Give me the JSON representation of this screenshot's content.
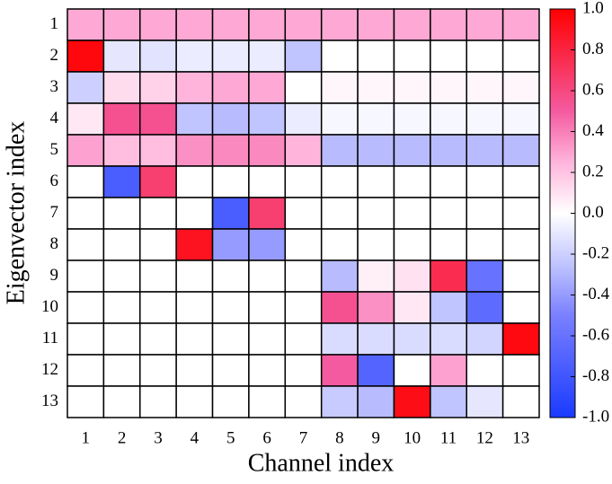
{
  "chart_data": {
    "type": "heatmap",
    "xlabel": "Channel index",
    "ylabel": "Eigenvector index",
    "x_labels": [
      1,
      2,
      3,
      4,
      5,
      6,
      7,
      8,
      9,
      10,
      11,
      12,
      13
    ],
    "y_labels": [
      1,
      2,
      3,
      4,
      5,
      6,
      7,
      8,
      9,
      10,
      11,
      12,
      13
    ],
    "z": [
      [
        0.28,
        0.28,
        0.28,
        0.28,
        0.28,
        0.28,
        0.28,
        0.28,
        0.28,
        0.28,
        0.28,
        0.28,
        0.28
      ],
      [
        0.96,
        -0.1,
        -0.12,
        -0.08,
        -0.08,
        -0.08,
        -0.25,
        0,
        0,
        0,
        0,
        0,
        0
      ],
      [
        -0.2,
        0.12,
        0.15,
        0.25,
        0.28,
        0.28,
        0,
        0.03,
        0.03,
        0.03,
        0.03,
        0.03,
        0.03
      ],
      [
        0.08,
        0.55,
        0.55,
        -0.25,
        -0.28,
        -0.25,
        -0.08,
        -0.03,
        -0.03,
        -0.03,
        -0.03,
        -0.03,
        -0.03
      ],
      [
        0.3,
        0.22,
        0.22,
        0.35,
        0.37,
        0.37,
        0.25,
        -0.28,
        -0.28,
        -0.28,
        -0.28,
        -0.28,
        -0.28
      ],
      [
        0,
        -0.75,
        0.65,
        0,
        0,
        0,
        0,
        0,
        0,
        0,
        0,
        0,
        0
      ],
      [
        0,
        0,
        0,
        0,
        -0.75,
        0.65,
        0,
        0,
        0,
        0,
        0,
        0,
        0
      ],
      [
        0,
        0,
        0,
        0.9,
        -0.4,
        -0.4,
        0,
        0,
        0,
        0,
        0,
        0,
        0
      ],
      [
        0,
        0,
        0,
        0,
        0,
        0,
        0,
        -0.28,
        0.05,
        0.1,
        0.75,
        -0.6,
        0
      ],
      [
        0,
        0,
        0,
        0,
        0,
        0,
        0,
        0.55,
        0.35,
        0.08,
        -0.25,
        -0.65,
        0
      ],
      [
        0,
        0,
        0,
        0,
        0,
        0,
        0,
        -0.15,
        -0.15,
        -0.15,
        -0.15,
        -0.18,
        0.95
      ],
      [
        0,
        0,
        0,
        0,
        0,
        0,
        0,
        0.5,
        -0.7,
        0,
        0.3,
        0,
        0
      ],
      [
        0,
        0,
        0,
        0,
        0,
        0,
        0,
        -0.22,
        -0.28,
        0.93,
        -0.25,
        -0.1,
        0
      ]
    ],
    "zlim": [
      -1,
      1
    ],
    "colorscale": [
      {
        "value": -1,
        "color": "#1a3aff"
      },
      {
        "value": -0.5,
        "color": "#7a80ff"
      },
      {
        "value": -0.25,
        "color": "#c0c4ff"
      },
      {
        "value": 0,
        "color": "#ffffff"
      },
      {
        "value": 0.25,
        "color": "#ffb4dc"
      },
      {
        "value": 0.5,
        "color": "#f45aa0"
      },
      {
        "value": 1,
        "color": "#ff0000"
      }
    ],
    "colorbar_ticks": [
      {
        "value": 1,
        "label": "1.0"
      },
      0.8,
      0.6,
      0.4,
      0.2,
      {
        "value": 0,
        "label": "0.0"
      },
      -0.2,
      -0.4,
      -0.6,
      -0.8,
      {
        "value": -1,
        "label": "-1.0"
      }
    ]
  }
}
